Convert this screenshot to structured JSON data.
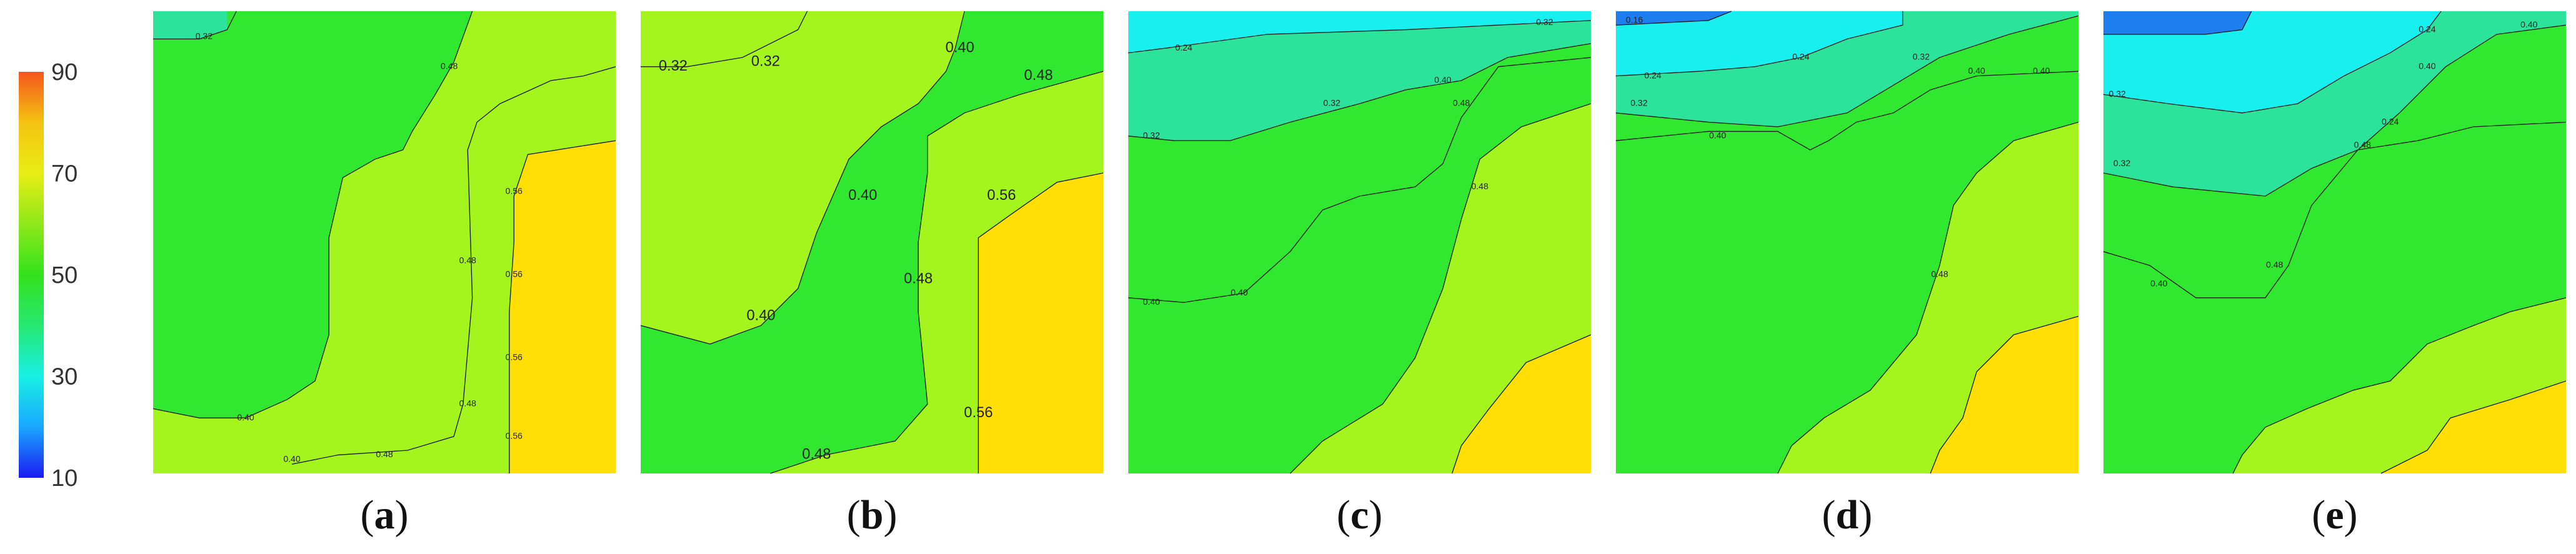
{
  "chart_data": [
    {
      "type": "colorbar",
      "ticks": [
        90,
        70,
        50,
        30,
        10
      ],
      "range": [
        10,
        90
      ],
      "colors": [
        "#1b1bf0",
        "#1aa7ff",
        "#19f0e5",
        "#25e870",
        "#33e21c",
        "#8fe81a",
        "#e8ee14",
        "#f5c312",
        "#f5561d"
      ]
    },
    {
      "type": "contour",
      "panel": "a",
      "caption_letter": "a",
      "levels": [
        0.32,
        0.4,
        0.48,
        0.56
      ],
      "contour_labels": [
        "0.32",
        "0.40",
        "0.48",
        "0.40",
        "0.48",
        "0.48",
        "0.48",
        "0.56",
        "0.56",
        "0.56",
        "0.56"
      ]
    },
    {
      "type": "contour",
      "panel": "b",
      "caption_letter": "b",
      "levels": [
        0.32,
        0.4,
        0.48,
        0.56
      ],
      "contour_labels": [
        "0.32",
        "0.32",
        "0.40",
        "0.40",
        "0.40",
        "0.48",
        "0.48",
        "0.48",
        "0.56",
        "0.56"
      ]
    },
    {
      "type": "contour",
      "panel": "c",
      "caption_letter": "c",
      "levels": [
        0.24,
        0.32,
        0.4,
        0.48
      ],
      "contour_labels": [
        "0.24",
        "0.32",
        "0.32",
        "0.32",
        "0.40",
        "0.40",
        "0.40",
        "0.48",
        "0.48"
      ]
    },
    {
      "type": "contour",
      "panel": "d",
      "caption_letter": "d",
      "levels": [
        0.16,
        0.24,
        0.32,
        0.4,
        0.48
      ],
      "contour_labels": [
        "0.16",
        "0.24",
        "0.24",
        "0.32",
        "0.32",
        "0.40",
        "0.40",
        "0.40",
        "0.48"
      ]
    },
    {
      "type": "contour",
      "panel": "e",
      "caption_letter": "e",
      "levels": [
        0.24,
        0.32,
        0.4,
        0.48
      ],
      "contour_labels": [
        "0.32",
        "0.24",
        "0.32",
        "0.40",
        "0.40",
        "0.40",
        "0.48",
        "0.48",
        "0.24"
      ]
    }
  ]
}
